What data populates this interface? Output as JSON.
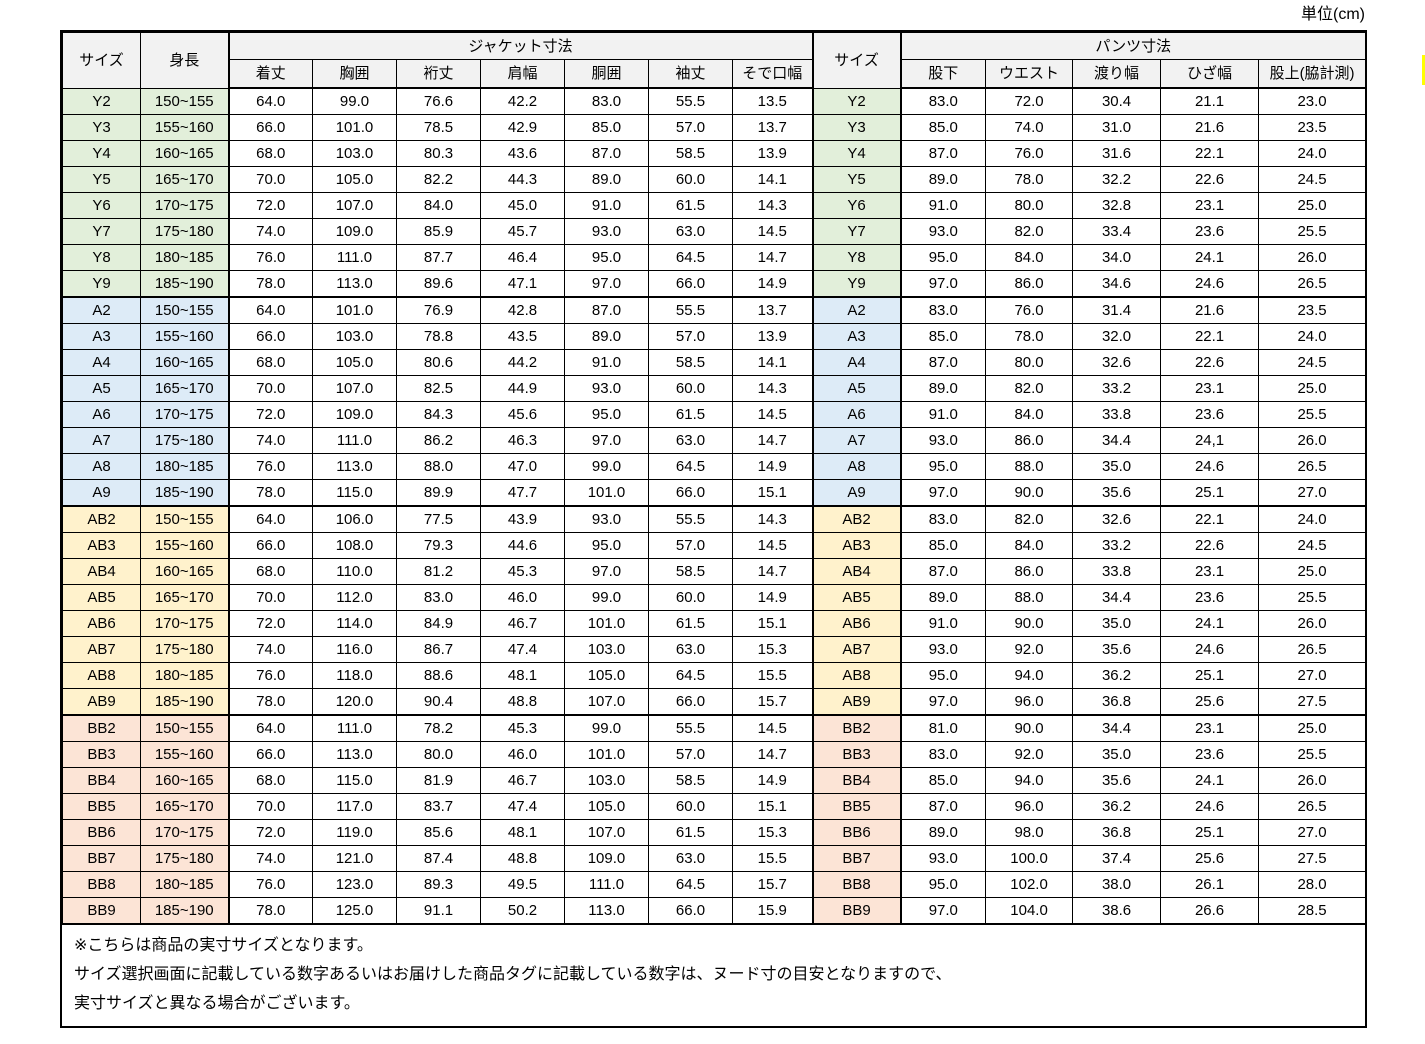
{
  "unit_label": "単位(cm)",
  "colors": {
    "header_bg": "#f2f2f2",
    "group_y": "#e2efda",
    "group_a": "#ddebf7",
    "group_ab": "#fff2cc",
    "group_bb": "#fce4d6",
    "highlight_yellow": "#ffff00",
    "border": "#000000"
  },
  "table": {
    "headers": {
      "size": "サイズ",
      "height": "身長",
      "jacket_group": "ジャケット寸法",
      "jacket_cols": [
        "着丈",
        "胸囲",
        "裄丈",
        "肩幅",
        "胴囲",
        "袖丈",
        "そで口幅"
      ],
      "size2": "サイズ",
      "pants_group": "パンツ寸法",
      "pants_cols": [
        "股下",
        "ウエスト",
        "渡り幅",
        "ひざ幅",
        "股上(脇計測)"
      ]
    },
    "groups": [
      {
        "name": "Y",
        "color": "#e2efda",
        "rows": [
          {
            "size": "Y2",
            "height": "150~155",
            "jacket": [
              "64.0",
              "99.0",
              "76.6",
              "42.2",
              "83.0",
              "55.5",
              "13.5"
            ],
            "pants": [
              "83.0",
              "72.0",
              "30.4",
              "21.1",
              "23.0"
            ]
          },
          {
            "size": "Y3",
            "height": "155~160",
            "jacket": [
              "66.0",
              "101.0",
              "78.5",
              "42.9",
              "85.0",
              "57.0",
              "13.7"
            ],
            "pants": [
              "85.0",
              "74.0",
              "31.0",
              "21.6",
              "23.5"
            ]
          },
          {
            "size": "Y4",
            "height": "160~165",
            "jacket": [
              "68.0",
              "103.0",
              "80.3",
              "43.6",
              "87.0",
              "58.5",
              "13.9"
            ],
            "pants": [
              "87.0",
              "76.0",
              "31.6",
              "22.1",
              "24.0"
            ]
          },
          {
            "size": "Y5",
            "height": "165~170",
            "jacket": [
              "70.0",
              "105.0",
              "82.2",
              "44.3",
              "89.0",
              "60.0",
              "14.1"
            ],
            "pants": [
              "89.0",
              "78.0",
              "32.2",
              "22.6",
              "24.5"
            ]
          },
          {
            "size": "Y6",
            "height": "170~175",
            "jacket": [
              "72.0",
              "107.0",
              "84.0",
              "45.0",
              "91.0",
              "61.5",
              "14.3"
            ],
            "pants": [
              "91.0",
              "80.0",
              "32.8",
              "23.1",
              "25.0"
            ]
          },
          {
            "size": "Y7",
            "height": "175~180",
            "jacket": [
              "74.0",
              "109.0",
              "85.9",
              "45.7",
              "93.0",
              "63.0",
              "14.5"
            ],
            "pants": [
              "93.0",
              "82.0",
              "33.4",
              "23.6",
              "25.5"
            ]
          },
          {
            "size": "Y8",
            "height": "180~185",
            "jacket": [
              "76.0",
              "111.0",
              "87.7",
              "46.4",
              "95.0",
              "64.5",
              "14.7"
            ],
            "pants": [
              "95.0",
              "84.0",
              "34.0",
              "24.1",
              "26.0"
            ]
          },
          {
            "size": "Y9",
            "height": "185~190",
            "jacket": [
              "78.0",
              "113.0",
              "89.6",
              "47.1",
              "97.0",
              "66.0",
              "14.9"
            ],
            "pants": [
              "97.0",
              "86.0",
              "34.6",
              "24.6",
              "26.5"
            ]
          }
        ]
      },
      {
        "name": "A",
        "color": "#ddebf7",
        "rows": [
          {
            "size": "A2",
            "height": "150~155",
            "jacket": [
              "64.0",
              "101.0",
              "76.9",
              "42.8",
              "87.0",
              "55.5",
              "13.7"
            ],
            "pants": [
              "83.0",
              "76.0",
              "31.4",
              "21.6",
              "23.5"
            ]
          },
          {
            "size": "A3",
            "height": "155~160",
            "jacket": [
              "66.0",
              "103.0",
              "78.8",
              "43.5",
              "89.0",
              "57.0",
              "13.9"
            ],
            "pants": [
              "85.0",
              "78.0",
              "32.0",
              "22.1",
              "24.0"
            ]
          },
          {
            "size": "A4",
            "height": "160~165",
            "jacket": [
              "68.0",
              "105.0",
              "80.6",
              "44.2",
              "91.0",
              "58.5",
              "14.1"
            ],
            "pants": [
              "87.0",
              "80.0",
              "32.6",
              "22.6",
              "24.5"
            ]
          },
          {
            "size": "A5",
            "height": "165~170",
            "jacket": [
              "70.0",
              "107.0",
              "82.5",
              "44.9",
              "93.0",
              "60.0",
              "14.3"
            ],
            "pants": [
              "89.0",
              "82.0",
              "33.2",
              "23.1",
              "25.0"
            ]
          },
          {
            "size": "A6",
            "height": "170~175",
            "jacket": [
              "72.0",
              "109.0",
              "84.3",
              "45.6",
              "95.0",
              "61.5",
              "14.5"
            ],
            "pants": [
              "91.0",
              "84.0",
              "33.8",
              "23.6",
              "25.5"
            ]
          },
          {
            "size": "A7",
            "height": "175~180",
            "jacket": [
              "74.0",
              "111.0",
              "86.2",
              "46.3",
              "97.0",
              "63.0",
              "14.7"
            ],
            "pants": [
              "93.0",
              "86.0",
              "34.4",
              "24,1",
              "26.0"
            ]
          },
          {
            "size": "A8",
            "height": "180~185",
            "jacket": [
              "76.0",
              "113.0",
              "88.0",
              "47.0",
              "99.0",
              "64.5",
              "14.9"
            ],
            "pants": [
              "95.0",
              "88.0",
              "35.0",
              "24.6",
              "26.5"
            ]
          },
          {
            "size": "A9",
            "height": "185~190",
            "jacket": [
              "78.0",
              "115.0",
              "89.9",
              "47.7",
              "101.0",
              "66.0",
              "15.1"
            ],
            "pants": [
              "97.0",
              "90.0",
              "35.6",
              "25.1",
              "27.0"
            ]
          }
        ]
      },
      {
        "name": "AB",
        "color": "#fff2cc",
        "rows": [
          {
            "size": "AB2",
            "height": "150~155",
            "jacket": [
              "64.0",
              "106.0",
              "77.5",
              "43.9",
              "93.0",
              "55.5",
              "14.3"
            ],
            "pants": [
              "83.0",
              "82.0",
              "32.6",
              "22.1",
              "24.0"
            ]
          },
          {
            "size": "AB3",
            "height": "155~160",
            "jacket": [
              "66.0",
              "108.0",
              "79.3",
              "44.6",
              "95.0",
              "57.0",
              "14.5"
            ],
            "pants": [
              "85.0",
              "84.0",
              "33.2",
              "22.6",
              "24.5"
            ]
          },
          {
            "size": "AB4",
            "height": "160~165",
            "jacket": [
              "68.0",
              "110.0",
              "81.2",
              "45.3",
              "97.0",
              "58.5",
              "14.7"
            ],
            "pants": [
              "87.0",
              "86.0",
              "33.8",
              "23.1",
              "25.0"
            ]
          },
          {
            "size": "AB5",
            "height": "165~170",
            "jacket": [
              "70.0",
              "112.0",
              "83.0",
              "46.0",
              "99.0",
              "60.0",
              "14.9"
            ],
            "pants": [
              "89.0",
              "88.0",
              "34.4",
              "23.6",
              "25.5"
            ]
          },
          {
            "size": "AB6",
            "height": "170~175",
            "jacket": [
              "72.0",
              "114.0",
              "84.9",
              "46.7",
              "101.0",
              "61.5",
              "15.1"
            ],
            "pants": [
              "91.0",
              "90.0",
              "35.0",
              "24.1",
              "26.0"
            ]
          },
          {
            "size": "AB7",
            "height": "175~180",
            "jacket": [
              "74.0",
              "116.0",
              "86.7",
              "47.4",
              "103.0",
              "63.0",
              "15.3"
            ],
            "pants": [
              "93.0",
              "92.0",
              "35.6",
              "24.6",
              "26.5"
            ]
          },
          {
            "size": "AB8",
            "height": "180~185",
            "jacket": [
              "76.0",
              "118.0",
              "88.6",
              "48.1",
              "105.0",
              "64.5",
              "15.5"
            ],
            "pants": [
              "95.0",
              "94.0",
              "36.2",
              "25.1",
              "27.0"
            ]
          },
          {
            "size": "AB9",
            "height": "185~190",
            "jacket": [
              "78.0",
              "120.0",
              "90.4",
              "48.8",
              "107.0",
              "66.0",
              "15.7"
            ],
            "pants": [
              "97.0",
              "96.0",
              "36.8",
              "25.6",
              "27.5"
            ]
          }
        ]
      },
      {
        "name": "BB",
        "color": "#fce4d6",
        "rows": [
          {
            "size": "BB2",
            "height": "150~155",
            "jacket": [
              "64.0",
              "111.0",
              "78.2",
              "45.3",
              "99.0",
              "55.5",
              "14.5"
            ],
            "pants": [
              "81.0",
              "90.0",
              "34.4",
              "23.1",
              "25.0"
            ]
          },
          {
            "size": "BB3",
            "height": "155~160",
            "jacket": [
              "66.0",
              "113.0",
              "80.0",
              "46.0",
              "101.0",
              "57.0",
              "14.7"
            ],
            "pants": [
              "83.0",
              "92.0",
              "35.0",
              "23.6",
              "25.5"
            ]
          },
          {
            "size": "BB4",
            "height": "160~165",
            "jacket": [
              "68.0",
              "115.0",
              "81.9",
              "46.7",
              "103.0",
              "58.5",
              "14.9"
            ],
            "pants": [
              "85.0",
              "94.0",
              "35.6",
              "24.1",
              "26.0"
            ]
          },
          {
            "size": "BB5",
            "height": "165~170",
            "jacket": [
              "70.0",
              "117.0",
              "83.7",
              "47.4",
              "105.0",
              "60.0",
              "15.1"
            ],
            "pants": [
              "87.0",
              "96.0",
              "36.2",
              "24.6",
              "26.5"
            ]
          },
          {
            "size": "BB6",
            "height": "170~175",
            "jacket": [
              "72.0",
              "119.0",
              "85.6",
              "48.1",
              "107.0",
              "61.5",
              "15.3"
            ],
            "pants": [
              "89.0",
              "98.0",
              "36.8",
              "25.1",
              "27.0"
            ]
          },
          {
            "size": "BB7",
            "height": "175~180",
            "jacket": [
              "74.0",
              "121.0",
              "87.4",
              "48.8",
              "109.0",
              "63.0",
              "15.5"
            ],
            "pants": [
              "93.0",
              "100.0",
              "37.4",
              "25.6",
              "27.5"
            ]
          },
          {
            "size": "BB8",
            "height": "180~185",
            "jacket": [
              "76.0",
              "123.0",
              "89.3",
              "49.5",
              "111.0",
              "64.5",
              "15.7"
            ],
            "pants": [
              "95.0",
              "102.0",
              "38.0",
              "26.1",
              "28.0"
            ]
          },
          {
            "size": "BB9",
            "height": "185~190",
            "jacket": [
              "78.0",
              "125.0",
              "91.1",
              "50.2",
              "113.0",
              "66.0",
              "15.9"
            ],
            "pants": [
              "97.0",
              "104.0",
              "38.6",
              "26.6",
              "28.5"
            ]
          }
        ]
      }
    ]
  },
  "notes": [
    "※こちらは商品の実寸サイズとなります。",
    "サイズ選択画面に記載している数字あるいはお届けした商品タグに記載している数字は、ヌード寸の目安となりますので、",
    "実寸サイズと異なる場合がございます。"
  ]
}
